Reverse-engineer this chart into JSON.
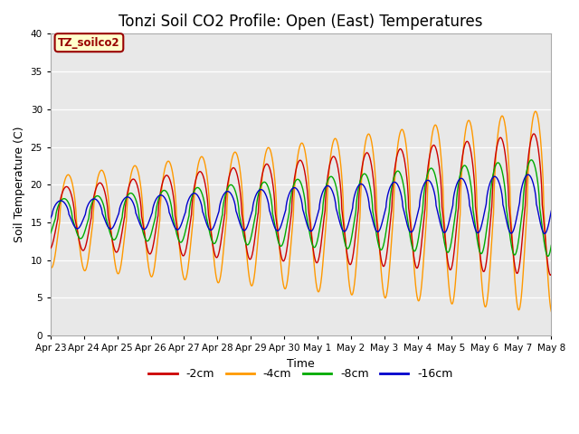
{
  "title": "Tonzi Soil CO2 Profile: Open (East) Temperatures",
  "xlabel": "Time",
  "ylabel": "Soil Temperature (C)",
  "ylim": [
    0,
    40
  ],
  "yticks": [
    0,
    5,
    10,
    15,
    20,
    25,
    30,
    35,
    40
  ],
  "x_labels": [
    "Apr 23",
    "Apr 24",
    "Apr 25",
    "Apr 26",
    "Apr 27",
    "Apr 28",
    "Apr 29",
    "Apr 30",
    "May 1",
    "May 2",
    "May 3",
    "May 4",
    "May 5",
    "May 6",
    "May 7",
    "May 8"
  ],
  "legend_labels": [
    "-2cm",
    "-4cm",
    "-8cm",
    "-16cm"
  ],
  "colors": [
    "#cc0000",
    "#ff9900",
    "#00aa00",
    "#0000cc"
  ],
  "bg_color": "#e8e8e8",
  "annotation_text": "TZ_soilco2",
  "annotation_color": "#990000",
  "annotation_box_color": "#ffffcc",
  "title_fontsize": 12,
  "axis_fontsize": 9,
  "legend_fontsize": 9
}
